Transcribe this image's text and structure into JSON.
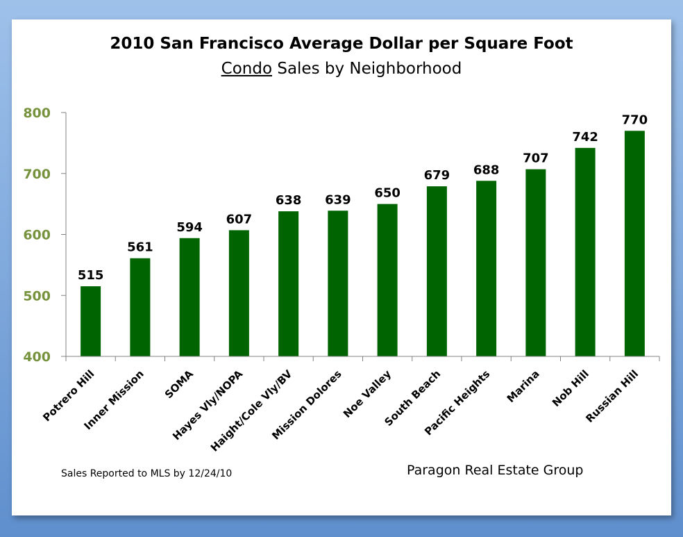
{
  "chart_data": {
    "type": "bar",
    "title": "2010 San Francisco Average Dollar per Square Foot",
    "subtitle_emphasis": "Condo",
    "subtitle_rest": " Sales by Neighborhood",
    "categories": [
      "Potrero Hill",
      "Inner Mission",
      "SOMA",
      "Hayes Vly/NOPA",
      "Haight/Cole Vly/BV",
      "Mission Dolores",
      "Noe Valley",
      "South Beach",
      "Pacific Heights",
      "Marina",
      "Nob Hill",
      "Russian Hill"
    ],
    "values": [
      515,
      561,
      594,
      607,
      638,
      639,
      650,
      679,
      688,
      707,
      742,
      770
    ],
    "data_labels": [
      "515",
      "561",
      "594",
      "607",
      "638",
      "639",
      "650",
      "679",
      "688",
      "707",
      "742",
      "770"
    ],
    "ylim": [
      400,
      800
    ],
    "yticks": [
      "400",
      "500",
      "600",
      "700",
      "800"
    ],
    "grid": false,
    "colors": {
      "bar": "#006400",
      "ytick": "#76923c",
      "axis": "#808080"
    }
  },
  "footer": {
    "source_note": "Sales Reported to MLS by 12/24/10",
    "brand": "Paragon Real Estate Group"
  }
}
